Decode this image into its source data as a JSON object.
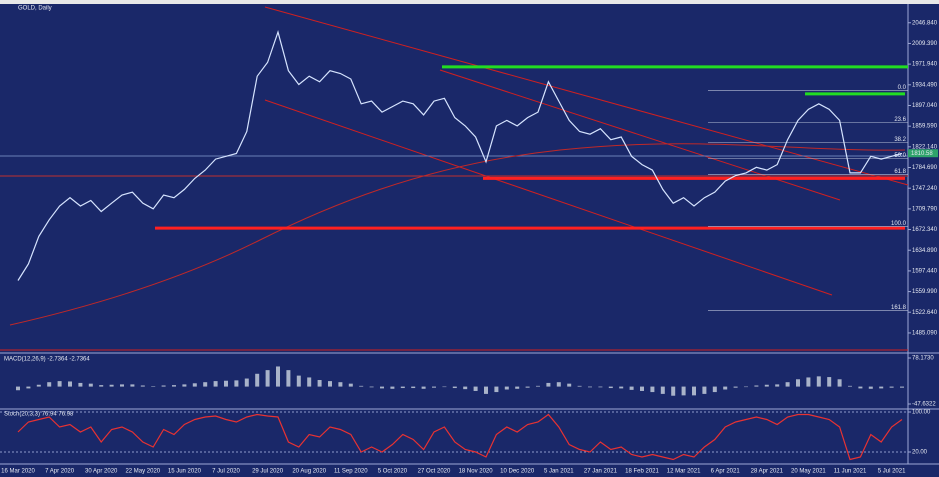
{
  "chart_data": [
    {
      "type": "line",
      "title": "GOLD, Daily",
      "color": "#d6e4ff",
      "categories": [
        "16 Mar 2020",
        null,
        null,
        null,
        "7 Apr 2020",
        null,
        null,
        null,
        "30 Apr 2020",
        null,
        null,
        null,
        "22 May 2020",
        null,
        null,
        null,
        "15 Jun 2020",
        null,
        null,
        null,
        "7 Jul 2020",
        null,
        null,
        null,
        "29 Jul 2020",
        null,
        null,
        null,
        "20 Aug 2020",
        null,
        null,
        null,
        "11 Sep 2020",
        null,
        null,
        null,
        "5 Oct 2020",
        null,
        null,
        null,
        "27 Oct 2020",
        null,
        null,
        null,
        "18 Nov 2020",
        null,
        null,
        null,
        "10 Dec 2020",
        null,
        null,
        null,
        "5 Jan 2021",
        null,
        null,
        null,
        "27 Jan 2021",
        null,
        null,
        null,
        "18 Feb 2021",
        null,
        null,
        null,
        "12 Mar 2021",
        null,
        null,
        null,
        "6 Apr 2021",
        null,
        null,
        null,
        "28 Apr 2021",
        null,
        null,
        null,
        "20 May 2021",
        null,
        null,
        null,
        "11 Jun 2021",
        null,
        null,
        null,
        "5 Jul 2021",
        null
      ],
      "values": [
        1580,
        1610,
        1660,
        1690,
        1715,
        1730,
        1715,
        1725,
        1705,
        1720,
        1735,
        1740,
        1720,
        1710,
        1735,
        1730,
        1745,
        1765,
        1780,
        1800,
        1805,
        1810,
        1850,
        1950,
        1975,
        2030,
        1960,
        1935,
        1950,
        1940,
        1960,
        1955,
        1945,
        1900,
        1905,
        1885,
        1895,
        1905,
        1900,
        1880,
        1905,
        1910,
        1875,
        1860,
        1840,
        1795,
        1860,
        1870,
        1860,
        1875,
        1885,
        1940,
        1905,
        1870,
        1850,
        1845,
        1855,
        1835,
        1840,
        1805,
        1790,
        1780,
        1745,
        1720,
        1730,
        1715,
        1730,
        1740,
        1760,
        1770,
        1775,
        1785,
        1780,
        1790,
        1835,
        1870,
        1890,
        1900,
        1890,
        1870,
        1775,
        1775,
        1805,
        1800,
        1805,
        1810
      ],
      "ylim": [
        1452.4,
        2079.0
      ],
      "yticks": [
        {
          "value": 2046.84,
          "label": "2046.840"
        },
        {
          "value": 2009.39,
          "label": "2009.390"
        },
        {
          "value": 1971.94,
          "label": "1971.940"
        },
        {
          "value": 1934.49,
          "label": "1934.490"
        },
        {
          "value": 1897.04,
          "label": "1897.040"
        },
        {
          "value": 1859.59,
          "label": "1859.590"
        },
        {
          "value": 1822.14,
          "label": "1822.140"
        },
        {
          "value": 1784.69,
          "label": "1784.690"
        },
        {
          "value": 1747.24,
          "label": "1747.240"
        },
        {
          "value": 1709.79,
          "label": "1709.790"
        },
        {
          "value": 1672.34,
          "label": "1672.340"
        },
        {
          "value": 1634.89,
          "label": "1634.890"
        },
        {
          "value": 1597.44,
          "label": "1597.440"
        },
        {
          "value": 1559.99,
          "label": "1559.990"
        },
        {
          "value": 1522.64,
          "label": "1522.640"
        },
        {
          "value": 1485.09,
          "label": "1485.090"
        }
      ],
      "last_price": 1810.58,
      "levels": [
        {
          "value": 1967,
          "color": "#22dd22"
        },
        {
          "value": 1918,
          "color": "#22dd22"
        },
        {
          "value": 1765,
          "color": "#ff2020"
        },
        {
          "value": 1675,
          "color": "#ff2020"
        }
      ],
      "fibonacci": [
        {
          "label": "0.0",
          "level": 1924
        },
        {
          "label": "23.6",
          "level": 1866
        },
        {
          "label": "38.2",
          "level": 1830
        },
        {
          "label": "50.0",
          "level": 1801
        },
        {
          "label": "61.8",
          "level": 1772
        },
        {
          "label": "100.0",
          "level": 1678
        },
        {
          "label": "161.8",
          "level": 1526
        }
      ]
    },
    {
      "type": "bar",
      "title": "MACD(12,26,9) -2.7364 -2.7364",
      "color": "#a9b3c9",
      "values": [
        -10,
        -5,
        5,
        12,
        15,
        14,
        10,
        8,
        4,
        5,
        6,
        6,
        3,
        1,
        3,
        4,
        6,
        9,
        12,
        15,
        16,
        17,
        22,
        35,
        45,
        55,
        45,
        30,
        25,
        18,
        15,
        12,
        8,
        2,
        -2,
        -5,
        -6,
        -4,
        -4,
        -6,
        -3,
        -1,
        -4,
        -7,
        -12,
        -20,
        -15,
        -8,
        -6,
        -3,
        2,
        10,
        12,
        8,
        2,
        -2,
        -2,
        -4,
        -5,
        -9,
        -12,
        -15,
        -20,
        -25,
        -24,
        -24,
        -20,
        -15,
        -8,
        -3,
        0,
        3,
        5,
        6,
        12,
        20,
        25,
        28,
        26,
        20,
        2,
        -5,
        -6,
        -5,
        -3,
        -3
      ],
      "ylim": [
        -47.6322,
        78.173
      ],
      "yticks": [
        {
          "value": 78.173,
          "label": "78.1730"
        },
        {
          "value": -47.6322,
          "label": "-47.6322"
        }
      ]
    },
    {
      "type": "line",
      "title": "Stoch(20,3,3) 76.94 76.98",
      "color": "#e83232",
      "values": [
        60,
        80,
        85,
        90,
        70,
        75,
        60,
        70,
        40,
        65,
        70,
        60,
        40,
        30,
        65,
        55,
        75,
        85,
        90,
        92,
        85,
        80,
        90,
        95,
        92,
        90,
        40,
        30,
        55,
        50,
        70,
        65,
        55,
        20,
        30,
        20,
        35,
        55,
        45,
        25,
        60,
        70,
        40,
        25,
        20,
        10,
        55,
        70,
        60,
        75,
        80,
        95,
        70,
        35,
        25,
        20,
        40,
        25,
        30,
        15,
        10,
        15,
        10,
        5,
        15,
        10,
        30,
        45,
        70,
        80,
        85,
        90,
        85,
        75,
        90,
        95,
        95,
        90,
        85,
        70,
        5,
        10,
        55,
        40,
        70,
        85
      ],
      "ylim": [
        0,
        100
      ],
      "yticks": [
        {
          "value": 100,
          "label": "100.00"
        },
        {
          "value": 20,
          "label": "20.00"
        }
      ]
    }
  ]
}
